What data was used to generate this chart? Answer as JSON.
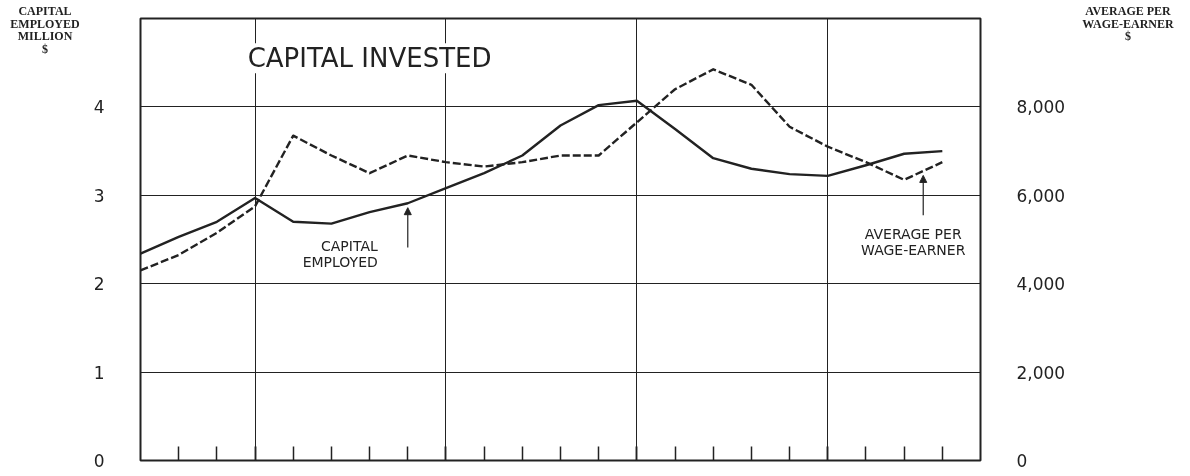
{
  "chart_data": {
    "type": "line",
    "title": "CAPITAL INVESTED",
    "ylabel": "CAPITAL\nEMPLOYED\nMILLION\n$",
    "y2label": "AVERAGE PER\nWAGE-EARNER\n$",
    "categories": [
      null,
      null,
      null,
      null,
      null,
      null,
      null,
      null,
      null,
      null,
      null,
      null,
      null,
      null,
      null,
      null,
      null,
      null,
      null,
      null,
      null,
      null
    ],
    "ylim": [
      0,
      5
    ],
    "yticks": [
      0,
      1,
      2,
      3,
      4
    ],
    "y2lim": [
      0,
      10000
    ],
    "y2ticks": [
      0,
      {
        "value": 2000,
        "label": "2,000"
      },
      {
        "value": 4000,
        "label": "4,000"
      },
      {
        "value": 6000,
        "label": "6,000"
      },
      {
        "value": 8000,
        "label": "8,000"
      }
    ],
    "series": [
      {
        "color": "#222222",
        "line_style": "solid",
        "values": [
          2.34,
          2.53,
          2.7,
          2.97,
          2.7,
          2.68,
          2.81,
          2.91,
          3.08,
          3.25,
          3.45,
          3.79,
          4.02,
          4.07,
          3.75,
          3.42,
          3.3,
          3.24,
          3.22,
          3.34,
          3.47,
          3.5
        ]
      },
      {
        "color": "#222222",
        "line_style": "dashed",
        "axis": "y2",
        "values": [
          4300,
          4650,
          5150,
          5750,
          7350,
          6900,
          6500,
          6900,
          6750,
          6650,
          6750,
          6900,
          6900,
          7650,
          8400,
          8850,
          8500,
          7550,
          7100,
          6750,
          6350,
          6750
        ]
      }
    ],
    "grid": true,
    "annotations": [
      "CAPITAL\nEMPLOYED",
      "AVERAGE PER\nWAGE-EARNER"
    ]
  }
}
